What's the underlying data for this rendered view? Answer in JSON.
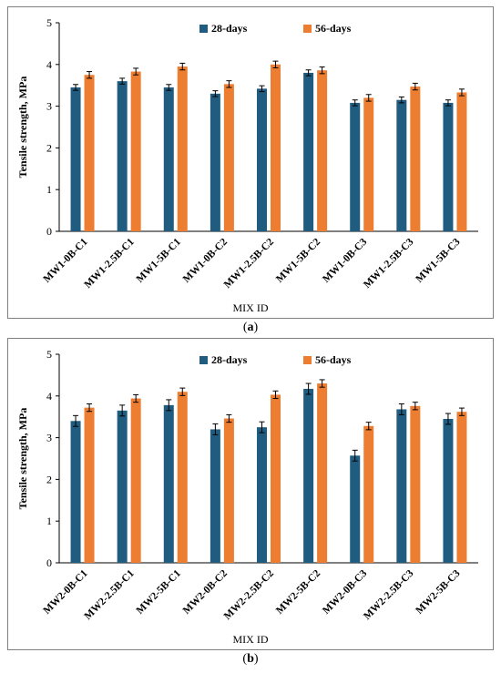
{
  "panels": [
    {
      "label_text": "(a)",
      "label_letter": "a",
      "chart_data": {
        "type": "bar",
        "title": "",
        "xlabel": "MIX ID",
        "ylabel": "Tensile strength, MPa",
        "ylim": [
          0,
          5
        ],
        "yticks": [
          0,
          1,
          2,
          3,
          4,
          5
        ],
        "legend_position": "top",
        "grid": false,
        "categories": [
          "MW1-0B-C1",
          "MW1-2.5B-C1",
          "MW1-5B-C1",
          "MW1-0B-C2",
          "MW1-2.5B-C2",
          "MW1-5B-C2",
          "MW1-0B-C3",
          "MW1-2.5B-C3",
          "MW1-5B-C3"
        ],
        "series": [
          {
            "name": "28-days",
            "color": "#1f5c80",
            "values": [
              3.45,
              3.6,
              3.45,
              3.3,
              3.42,
              3.8,
              3.08,
              3.15,
              3.08
            ],
            "errors": [
              0.07,
              0.07,
              0.07,
              0.07,
              0.07,
              0.07,
              0.07,
              0.07,
              0.07
            ]
          },
          {
            "name": "56-days",
            "color": "#ed7d31",
            "values": [
              3.75,
              3.83,
              3.95,
              3.53,
              4.0,
              3.86,
              3.2,
              3.47,
              3.33
            ],
            "errors": [
              0.08,
              0.08,
              0.08,
              0.08,
              0.08,
              0.08,
              0.08,
              0.08,
              0.08
            ]
          }
        ]
      }
    },
    {
      "label_text": "(b)",
      "label_letter": "b",
      "chart_data": {
        "type": "bar",
        "title": "",
        "xlabel": "MIX ID",
        "ylabel": "Tensile strength, MPa",
        "ylim": [
          0,
          5
        ],
        "yticks": [
          0,
          1,
          2,
          3,
          4,
          5
        ],
        "legend_position": "top",
        "grid": false,
        "categories": [
          "MW2-0B-C1",
          "MW2-2.5B-C1",
          "MW2-5B-C1",
          "MW2-0B-C2",
          "MW2-2.5B-C2",
          "MW2-5B-C2",
          "MW2-0B-C3",
          "MW2-2.5B-C3",
          "MW2-5B-C3"
        ],
        "series": [
          {
            "name": "28-days",
            "color": "#1f5c80",
            "values": [
              3.4,
              3.65,
              3.78,
              3.2,
              3.25,
              4.17,
              2.57,
              3.68,
              3.45
            ],
            "errors": [
              0.13,
              0.13,
              0.13,
              0.13,
              0.13,
              0.13,
              0.13,
              0.13,
              0.13
            ]
          },
          {
            "name": "56-days",
            "color": "#ed7d31",
            "values": [
              3.72,
              3.94,
              4.1,
              3.46,
              4.03,
              4.3,
              3.28,
              3.76,
              3.62
            ],
            "errors": [
              0.09,
              0.09,
              0.09,
              0.09,
              0.09,
              0.09,
              0.09,
              0.09,
              0.09
            ]
          }
        ]
      }
    }
  ]
}
